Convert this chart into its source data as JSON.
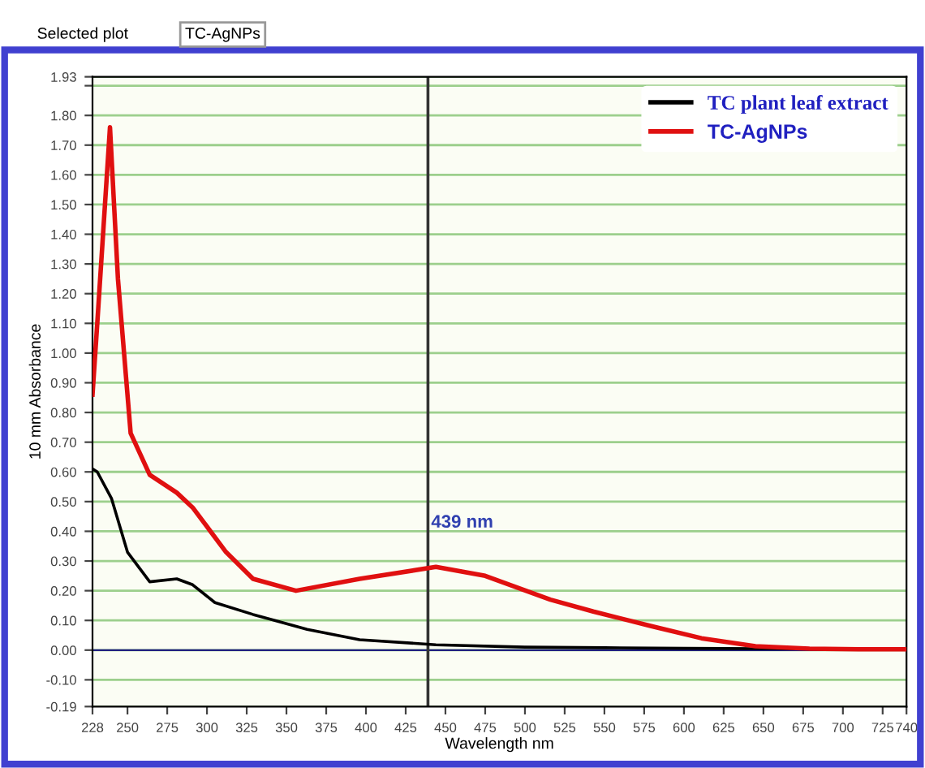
{
  "chart_data": {
    "type": "line",
    "xlabel": "Wavelength nm",
    "ylabel": "10 mm Absorbance",
    "annotations": [
      "Selected plot",
      "TC-AgNPs",
      {
        "text": "439 nm",
        "x": 439,
        "y": 0.4
      }
    ],
    "series": [
      {
        "name": "TC plant leaf extract",
        "color": "#000000",
        "x": [
          228,
          231,
          240,
          250,
          264,
          281,
          291,
          305,
          329,
          363,
          396,
          444,
          500,
          550,
          600,
          650,
          700,
          740
        ],
        "values": [
          0.61,
          0.6,
          0.51,
          0.33,
          0.23,
          0.24,
          0.22,
          0.16,
          0.12,
          0.07,
          0.035,
          0.018,
          0.01,
          0.008,
          0.006,
          0.005,
          0.004,
          0.004
        ]
      },
      {
        "name": "TC-AgNPs",
        "color": "#e01010",
        "x": [
          228,
          231,
          239,
          244,
          252,
          264,
          281,
          291,
          312,
          329,
          356,
          396,
          444,
          475,
          516,
          543,
          580,
          611,
          645,
          679,
          710,
          740
        ],
        "values": [
          0.86,
          1.1,
          1.76,
          1.25,
          0.73,
          0.59,
          0.53,
          0.48,
          0.33,
          0.24,
          0.2,
          0.24,
          0.28,
          0.25,
          0.17,
          0.13,
          0.08,
          0.04,
          0.013,
          0.005,
          0.003,
          0.003
        ]
      }
    ],
    "xlim": [
      228,
      740
    ],
    "xticks": [
      228,
      250,
      275,
      300,
      325,
      350,
      375,
      400,
      425,
      450,
      475,
      500,
      525,
      550,
      575,
      600,
      625,
      650,
      675,
      700,
      725,
      740
    ],
    "ylim": [
      -0.19,
      1.93
    ],
    "yticks": [
      {
        "value": -0.19,
        "label": "-0.19"
      },
      {
        "value": -0.1,
        "label": "-0.10"
      },
      {
        "value": 0,
        "label": "0.00"
      },
      {
        "value": 0.1,
        "label": "0.10"
      },
      {
        "value": 0.2,
        "label": "0.20"
      },
      {
        "value": 0.3,
        "label": "0.30"
      },
      {
        "value": 0.4,
        "label": "0.40"
      },
      {
        "value": 0.5,
        "label": "0.50"
      },
      {
        "value": 0.6,
        "label": "0.60"
      },
      {
        "value": 0.7,
        "label": "0.70"
      },
      {
        "value": 0.8,
        "label": "0.80"
      },
      {
        "value": 0.9,
        "label": "0.90"
      },
      {
        "value": 1.0,
        "label": "1.00"
      },
      {
        "value": 1.1,
        "label": "1.10"
      },
      {
        "value": 1.2,
        "label": "1.20"
      },
      {
        "value": 1.3,
        "label": "1.30"
      },
      {
        "value": 1.4,
        "label": "1.40"
      },
      {
        "value": 1.5,
        "label": "1.50"
      },
      {
        "value": 1.6,
        "label": "1.60"
      },
      {
        "value": 1.7,
        "label": "1.70"
      },
      {
        "value": 1.8,
        "label": "1.80"
      },
      {
        "value": 1.9,
        "label": null
      },
      {
        "value": 1.93,
        "label": "1.93"
      }
    ],
    "ref_lines": [
      {
        "axis": "x",
        "value": 439,
        "color": "#333333"
      },
      {
        "axis": "y",
        "value": 0,
        "color": "#202080"
      }
    ],
    "grid": "y",
    "legend": "top right",
    "marker": "none",
    "line_style": "solid"
  }
}
